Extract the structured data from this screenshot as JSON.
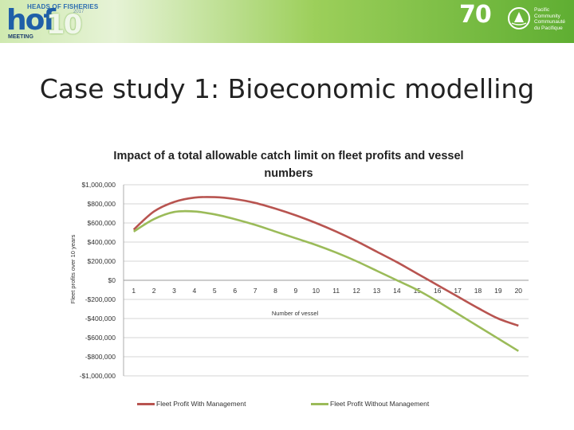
{
  "header": {
    "left_logo": {
      "heads_text": "HEADS OF FISHERIES",
      "year_text": "2017",
      "hof_text": "hof",
      "ten_text": "10",
      "meeting_text": "MEETING"
    },
    "right_logo": {
      "seventy_text": "70",
      "emblem_icon": "spc-emblem-icon",
      "line1": "Pacific",
      "line2": "Community",
      "line3": "Communauté",
      "line4": "du Pacifique"
    },
    "banner_colors": [
      "#cfe9b0",
      "#9ccf5a",
      "#5fae32"
    ]
  },
  "slide": {
    "title": "Case study 1: Bioeconomic modelling"
  },
  "chart_data": {
    "type": "line",
    "title": "Impact of a total allowable catch limit on fleet profits and vessel numbers",
    "title_lines": [
      "Impact of a total allowable catch limit on fleet profits and vessel",
      "numbers"
    ],
    "xlabel": "Number of vessel",
    "ylabel": "Fleet profits over 10 years",
    "x": [
      1,
      2,
      3,
      4,
      5,
      6,
      7,
      8,
      9,
      10,
      11,
      12,
      13,
      14,
      15,
      16,
      17,
      18,
      19,
      20
    ],
    "x_tick_labels": [
      "1",
      "2",
      "3",
      "4",
      "5",
      "6",
      "7",
      "8",
      "9",
      "10",
      "11",
      "12",
      "13",
      "14",
      "15",
      "16",
      "17",
      "18",
      "19",
      "20"
    ],
    "ylim": [
      -1000000,
      1000000
    ],
    "y_ticks": [
      1000000,
      800000,
      600000,
      400000,
      200000,
      0,
      -200000,
      -400000,
      -600000,
      -800000,
      -1000000
    ],
    "y_tick_labels": [
      "$1,000,000",
      "$800,000",
      "$600,000",
      "$400,000",
      "$200,000",
      "$0",
      "-$200,000",
      "-$400,000",
      "-$600,000",
      "-$800,000",
      "-$1,000,000"
    ],
    "grid": true,
    "legend_position": "bottom",
    "series": [
      {
        "name": "Fleet Profit With Management",
        "color": "#b85450",
        "values": [
          530000,
          720000,
          820000,
          865000,
          870000,
          850000,
          810000,
          750000,
          680000,
          600000,
          510000,
          410000,
          300000,
          190000,
          70000,
          -50000,
          -170000,
          -290000,
          -400000,
          -475000
        ]
      },
      {
        "name": "Fleet Profit Without Management",
        "color": "#9bbb59",
        "values": [
          510000,
          640000,
          715000,
          720000,
          690000,
          640000,
          580000,
          510000,
          440000,
          370000,
          290000,
          200000,
          100000,
          0,
          -100000,
          -220000,
          -350000,
          -480000,
          -610000,
          -740000
        ]
      }
    ]
  }
}
